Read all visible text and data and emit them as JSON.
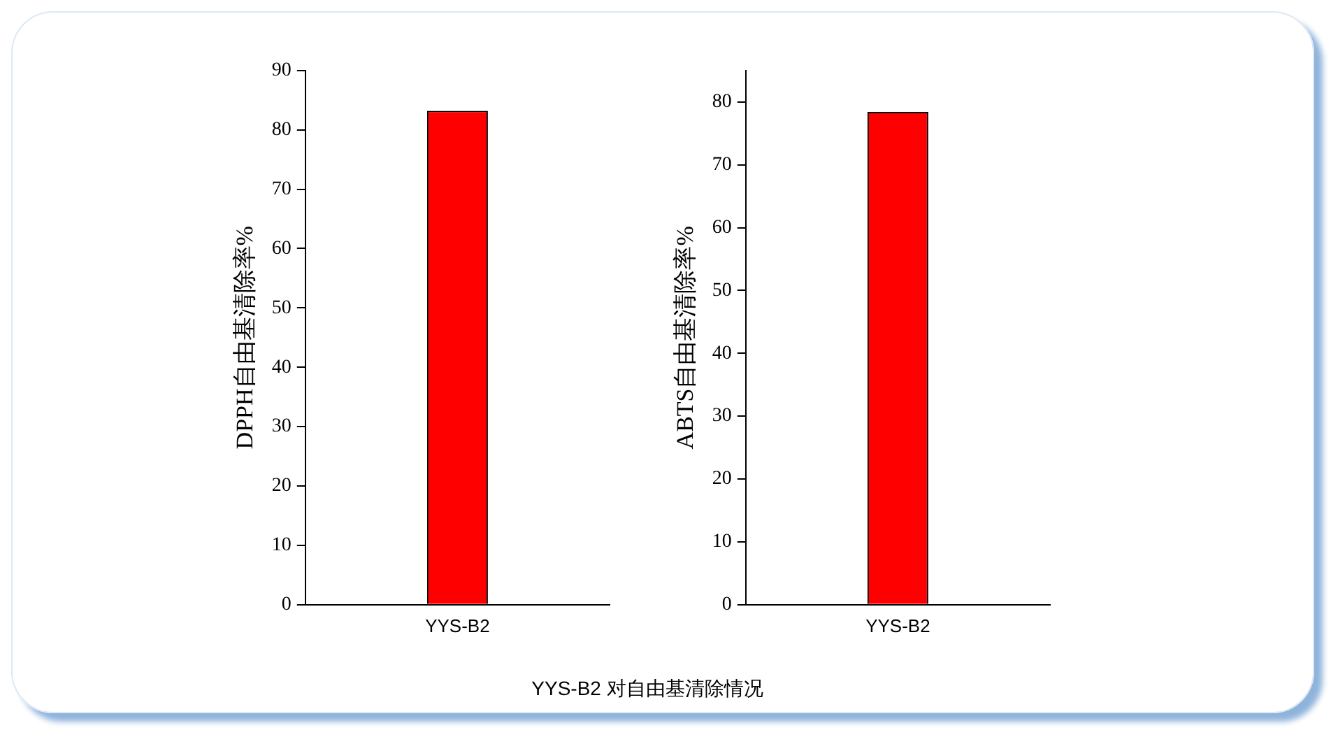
{
  "chart_data": [
    {
      "type": "bar",
      "categories": [
        "YYS-B2"
      ],
      "values": [
        83.2
      ],
      "color": "#ff0000",
      "ylabel": "DPPH自由基清除率%",
      "ylim": [
        0,
        90
      ],
      "yticks": [
        0,
        10,
        20,
        30,
        40,
        50,
        60,
        70,
        80,
        90
      ],
      "annotations": [
        "YYS-B2  对自由基清除情况"
      ]
    },
    {
      "type": "bar",
      "categories": [
        "YYS-B2"
      ],
      "values": [
        78.4
      ],
      "color": "#ff0000",
      "ylabel": "ABTS自由基清除率%",
      "ylim": [
        0,
        85
      ],
      "yticks": [
        0,
        10,
        20,
        30,
        40,
        50,
        60,
        70,
        80
      ]
    }
  ]
}
